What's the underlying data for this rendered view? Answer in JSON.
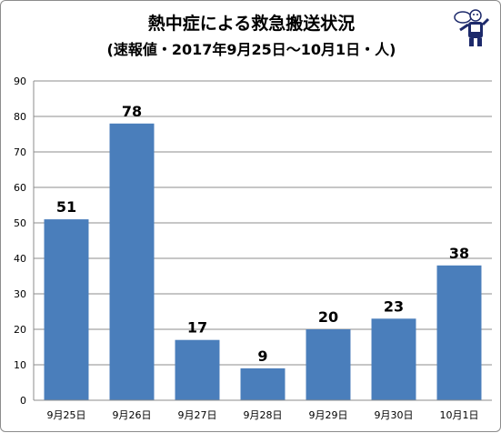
{
  "chart_data": {
    "type": "bar",
    "title": "熱中症による救急搬送状況",
    "subtitle": "(速報値・2017年9月25日～10月1日・人)",
    "categories": [
      "9月25日",
      "9月26日",
      "9月27日",
      "9月28日",
      "9月29日",
      "9月30日",
      "10月1日"
    ],
    "values": [
      51,
      78,
      17,
      9,
      20,
      23,
      38
    ],
    "data_labels": [
      "51",
      "78",
      "17",
      "9",
      "20",
      "23",
      "38"
    ],
    "ylim": [
      0,
      90
    ],
    "yticks": [
      "0",
      "10",
      "20",
      "30",
      "40",
      "50",
      "60",
      "70",
      "80",
      "90"
    ],
    "grid": true,
    "bar_color": "#4a7ebb",
    "xlabel": "",
    "ylabel": ""
  },
  "logo": {
    "icon": "mascot-figure-icon"
  }
}
